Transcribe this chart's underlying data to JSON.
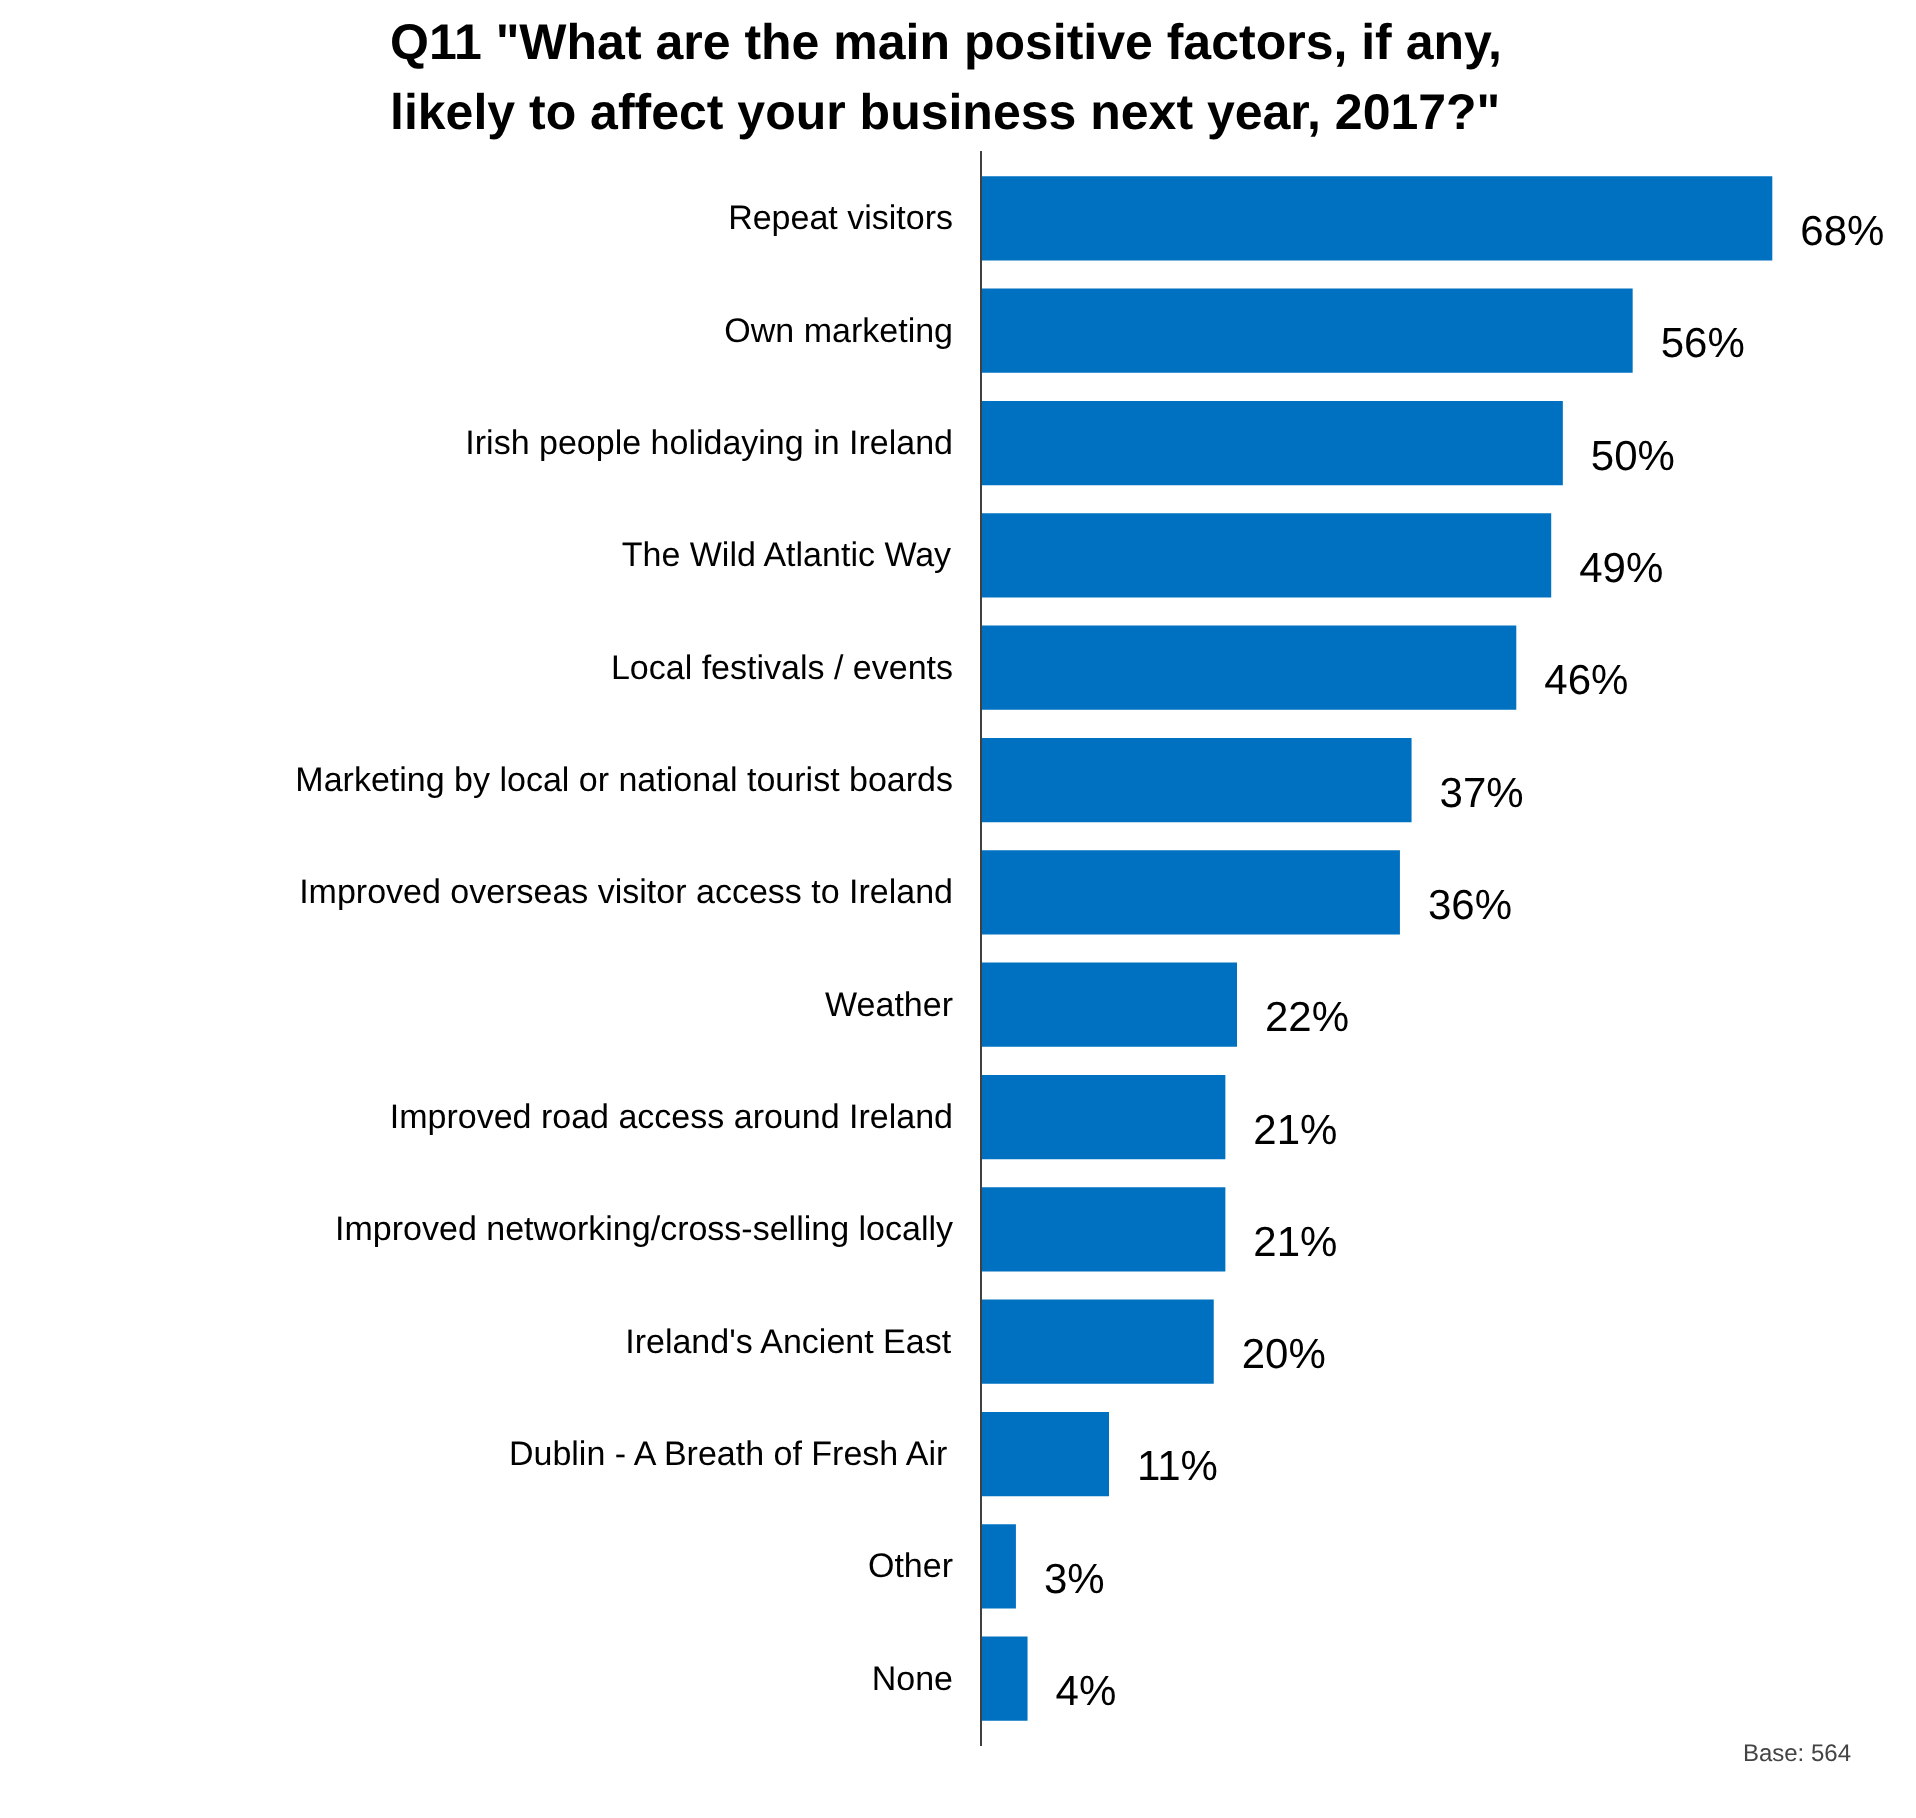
{
  "chart_data": {
    "type": "bar",
    "orientation": "horizontal",
    "title": "Q11 \"What are the main positive factors, if any, likely to affect your business next year, 2017?\"",
    "categories": [
      "Repeat visitors",
      "Own marketing",
      "Irish people holidaying in Ireland",
      "The Wild Atlantic Way",
      "Local festivals / events",
      "Marketing by local or national tourist boards",
      "Improved overseas visitor access to Ireland",
      "Weather",
      "Improved road access around Ireland",
      "Improved networking/cross-selling locally",
      "Ireland's Ancient East",
      "Dublin - A Breath of Fresh Air",
      "Other",
      "None"
    ],
    "values": [
      68,
      56,
      50,
      49,
      46,
      37,
      36,
      22,
      21,
      21,
      20,
      11,
      3,
      4
    ],
    "value_labels": [
      "68%",
      "56%",
      "50%",
      "49%",
      "46%",
      "37%",
      "36%",
      "22%",
      "21%",
      "21%",
      "20%",
      "11%",
      "3%",
      "4%"
    ],
    "color": "#0070c0",
    "tick_labels": "y",
    "grid": false,
    "legend": false,
    "annotations": [
      "Base: 564"
    ]
  }
}
